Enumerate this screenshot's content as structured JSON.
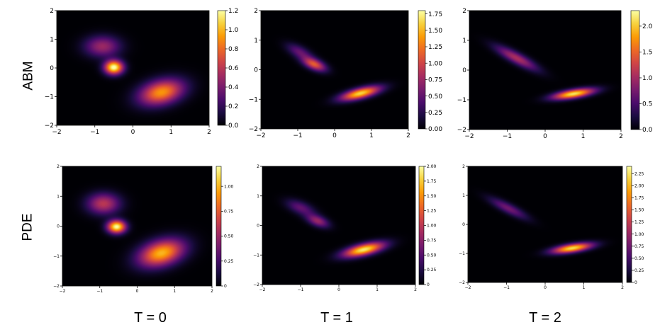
{
  "figure": {
    "row_labels": [
      "ABM",
      "PDE"
    ],
    "col_labels": [
      "T = 0",
      "T = 1",
      "T = 2"
    ]
  },
  "colormap": {
    "name": "inferno",
    "stops": [
      "#000004",
      "#1b0c41",
      "#4a0c6b",
      "#781c6d",
      "#a52c60",
      "#cf4446",
      "#ed6925",
      "#fb9b06",
      "#f7d13d",
      "#fcffa4"
    ]
  },
  "chart_data": [
    {
      "type": "heatmap",
      "row": "ABM",
      "panel_title": "T = 0",
      "xlim": [
        -2,
        2
      ],
      "ylim": [
        -2,
        2
      ],
      "xticks": [
        "−2",
        "−1",
        "0",
        "1",
        "2"
      ],
      "yticks": [
        "−2",
        "−1",
        "0",
        "1",
        "2"
      ],
      "colorbar": {
        "min": 0,
        "max": 1.2,
        "ticks": [
          "0.0",
          "0.2",
          "0.4",
          "0.6",
          "0.8",
          "1.0",
          "1.2"
        ]
      },
      "blobs": [
        {
          "cx": -0.8,
          "cy": 0.75,
          "sx": 0.32,
          "sy": 0.25,
          "rot": 0,
          "amp": 0.5
        },
        {
          "cx": -0.5,
          "cy": 0.02,
          "sx": 0.17,
          "sy": 0.17,
          "rot": 0,
          "amp": 1.22
        },
        {
          "cx": 0.75,
          "cy": -0.85,
          "sx": 0.42,
          "sy": 0.28,
          "rot": 25,
          "amp": 0.92
        }
      ]
    },
    {
      "type": "heatmap",
      "row": "ABM",
      "panel_title": "T = 1",
      "xlim": [
        -2,
        2
      ],
      "ylim": [
        -2,
        2
      ],
      "xticks": [
        "−2",
        "−1",
        "0",
        "1",
        "2"
      ],
      "yticks": [
        "−2",
        "−1",
        "0",
        "1",
        "2"
      ],
      "colorbar": {
        "min": 0,
        "max": 1.8,
        "ticks": [
          "0.00",
          "0.25",
          "0.50",
          "0.75",
          "1.00",
          "1.25",
          "1.50",
          "1.75"
        ]
      },
      "blobs": [
        {
          "cx": -0.95,
          "cy": 0.6,
          "sx": 0.28,
          "sy": 0.13,
          "rot": -35,
          "amp": 0.5
        },
        {
          "cx": -0.55,
          "cy": 0.18,
          "sx": 0.24,
          "sy": 0.12,
          "rot": -30,
          "amp": 1.1
        },
        {
          "cx": 0.7,
          "cy": -0.8,
          "sx": 0.38,
          "sy": 0.12,
          "rot": 18,
          "amp": 1.62
        }
      ]
    },
    {
      "type": "heatmap",
      "row": "ABM",
      "panel_title": "T = 2",
      "xlim": [
        -2,
        2
      ],
      "ylim": [
        -2,
        2
      ],
      "xticks": [
        "−2",
        "−1",
        "0",
        "1",
        "2"
      ],
      "yticks": [
        "−2",
        "−1",
        "0",
        "1",
        "2"
      ],
      "colorbar": {
        "min": 0,
        "max": 2.3,
        "ticks": [
          "0.0",
          "0.5",
          "1.0",
          "1.5",
          "2.0"
        ]
      },
      "blobs": [
        {
          "cx": -0.75,
          "cy": 0.4,
          "sx": 0.45,
          "sy": 0.12,
          "rot": -35,
          "amp": 1.05
        },
        {
          "cx": 0.75,
          "cy": -0.8,
          "sx": 0.38,
          "sy": 0.1,
          "rot": 12,
          "amp": 2.15
        }
      ]
    },
    {
      "type": "heatmap",
      "row": "PDE",
      "panel_title": "T = 0",
      "xlim": [
        -2,
        2
      ],
      "ylim": [
        -2,
        2
      ],
      "xticks": [
        "−2",
        "−1",
        "0",
        "1",
        "2"
      ],
      "yticks": [
        "−2",
        "−1",
        "0",
        "1",
        "2"
      ],
      "colorbar": {
        "min": 0,
        "max": 1.2,
        "ticks": [
          "0",
          "0.25",
          "0.50",
          "0.75",
          "1.00"
        ]
      },
      "blobs": [
        {
          "cx": -0.9,
          "cy": 0.75,
          "sx": 0.3,
          "sy": 0.24,
          "rot": 0,
          "amp": 0.6
        },
        {
          "cx": -0.55,
          "cy": -0.02,
          "sx": 0.17,
          "sy": 0.15,
          "rot": 0,
          "amp": 1.2
        },
        {
          "cx": 0.65,
          "cy": -0.9,
          "sx": 0.44,
          "sy": 0.28,
          "rot": 25,
          "amp": 1.0
        }
      ]
    },
    {
      "type": "heatmap",
      "row": "PDE",
      "panel_title": "T = 1",
      "xlim": [
        -2,
        2
      ],
      "ylim": [
        -2,
        2
      ],
      "xticks": [
        "−2",
        "−1",
        "0",
        "1",
        "2"
      ],
      "yticks": [
        "−2",
        "−1",
        "0",
        "1",
        "2"
      ],
      "colorbar": {
        "min": 0,
        "max": 2.0,
        "ticks": [
          "0",
          "0.25",
          "0.50",
          "0.75",
          "1.00",
          "1.25",
          "1.50",
          "1.75",
          "2.00"
        ]
      },
      "blobs": [
        {
          "cx": -1.0,
          "cy": 0.6,
          "sx": 0.28,
          "sy": 0.14,
          "rot": -30,
          "amp": 0.55
        },
        {
          "cx": -0.55,
          "cy": 0.15,
          "sx": 0.22,
          "sy": 0.12,
          "rot": -30,
          "amp": 0.8
        },
        {
          "cx": 0.65,
          "cy": -0.82,
          "sx": 0.38,
          "sy": 0.13,
          "rot": 18,
          "amp": 1.9
        }
      ]
    },
    {
      "type": "heatmap",
      "row": "PDE",
      "panel_title": "T = 2",
      "xlim": [
        -2,
        2
      ],
      "ylim": [
        -2,
        2
      ],
      "xticks": [
        "−2",
        "−1",
        "0",
        "1",
        "2"
      ],
      "yticks": [
        "−2",
        "−1",
        "0",
        "1",
        "2"
      ],
      "colorbar": {
        "min": 0,
        "max": 2.4,
        "ticks": [
          "0",
          "0.25",
          "0.50",
          "0.75",
          "1.00",
          "1.25",
          "1.50",
          "1.75",
          "2.00",
          "2.25"
        ]
      },
      "blobs": [
        {
          "cx": -0.95,
          "cy": 0.55,
          "sx": 0.4,
          "sy": 0.11,
          "rot": -35,
          "amp": 0.75
        },
        {
          "cx": 0.7,
          "cy": -0.82,
          "sx": 0.36,
          "sy": 0.1,
          "rot": 12,
          "amp": 2.2
        }
      ]
    }
  ]
}
